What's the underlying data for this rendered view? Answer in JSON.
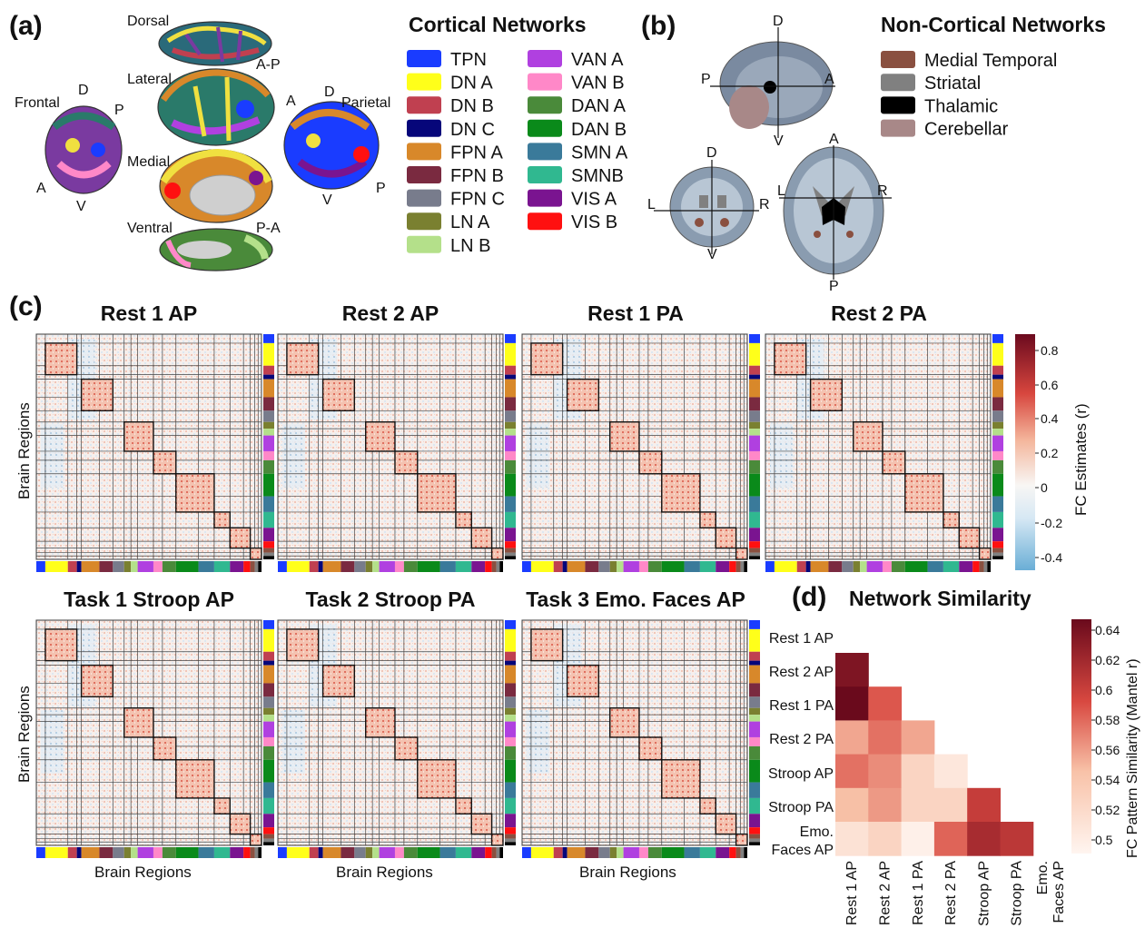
{
  "panels": {
    "a": {
      "label": "(a)",
      "views": [
        "Dorsal",
        "Lateral",
        "Medial",
        "Ventral",
        "Frontal",
        "Parietal"
      ],
      "orient": {
        "d": "D",
        "p": "P",
        "a": "A",
        "v": "V",
        "ap": "A-P",
        "pa": "P-A"
      }
    },
    "cortical": {
      "title": "Cortical Networks",
      "items": [
        {
          "name": "TPN",
          "color": "#1a3cff"
        },
        {
          "name": "DN A",
          "color": "#ffff1a"
        },
        {
          "name": "DN B",
          "color": "#c04050"
        },
        {
          "name": "DN C",
          "color": "#06067a"
        },
        {
          "name": "FPN A",
          "color": "#d8882a"
        },
        {
          "name": "FPN B",
          "color": "#7a2a40"
        },
        {
          "name": "FPN C",
          "color": "#787c8c"
        },
        {
          "name": "LN A",
          "color": "#7a8030"
        },
        {
          "name": "LN B",
          "color": "#b4e08a"
        },
        {
          "name": "VAN A",
          "color": "#b040e0"
        },
        {
          "name": "VAN B",
          "color": "#ff88c8"
        },
        {
          "name": "DAN A",
          "color": "#4a8a3a"
        },
        {
          "name": "DAN B",
          "color": "#0a8a1a"
        },
        {
          "name": "SMN A",
          "color": "#3a7a9a"
        },
        {
          "name": "SMNB",
          "color": "#30b890"
        },
        {
          "name": "VIS A",
          "color": "#7a1490"
        },
        {
          "name": "VIS B",
          "color": "#ff1010"
        }
      ]
    },
    "b": {
      "label": "(b)",
      "title": "Non-Cortical Networks",
      "items": [
        {
          "name": "Medial Temporal",
          "color": "#8a5040"
        },
        {
          "name": "Striatal",
          "color": "#808080"
        },
        {
          "name": "Thalamic",
          "color": "#000000"
        },
        {
          "name": "Cerebellar",
          "color": "#a88888"
        }
      ],
      "orient": {
        "d": "D",
        "v": "V",
        "a": "A",
        "p": "P",
        "l": "L",
        "r": "R"
      }
    },
    "c": {
      "label": "(c)",
      "matrices": [
        "Rest 1 AP",
        "Rest 2 AP",
        "Rest 1 PA",
        "Rest 2 PA",
        "Task 1 Stroop AP",
        "Task 2 Stroop PA",
        "Task 3 Emo. Faces AP"
      ],
      "axis_label": "Brain Regions",
      "colorbar": {
        "label": "FC Estimates (r)",
        "ticks": [
          "0.8",
          "0.6",
          "0.4",
          "0.2",
          "0",
          "-0.2",
          "-0.4"
        ]
      }
    },
    "d": {
      "label": "(d)",
      "title": "Network Similarity",
      "colorbar": {
        "label": "FC Pattern Similarity (Mantel r)",
        "ticks": [
          "0.64",
          "0.62",
          "0.6",
          "0.58",
          "0.56",
          "0.54",
          "0.52",
          "0.5"
        ]
      }
    }
  },
  "chart_data": {
    "type": "heatmap",
    "title": "Network Similarity",
    "rows": [
      "Rest 1 AP",
      "Rest 2 AP",
      "Rest 1 PA",
      "Rest 2 PA",
      "Stroop AP",
      "Stroop PA",
      "Emo. Faces AP"
    ],
    "cols": [
      "Rest 1 AP",
      "Rest 2 AP",
      "Rest 1 PA",
      "Rest 2 PA",
      "Stroop AP",
      "Stroop PA",
      "Emo. Faces AP"
    ],
    "value_range": [
      0.49,
      0.645
    ],
    "lower_triangle": [
      {
        "row": "Rest 2 AP",
        "values": [
          0.635
        ]
      },
      {
        "row": "Rest 1 PA",
        "values": [
          0.645,
          0.585
        ]
      },
      {
        "row": "Rest 2 PA",
        "values": [
          0.555,
          0.575,
          0.555
        ]
      },
      {
        "row": "Stroop AP",
        "values": [
          0.575,
          0.565,
          0.525,
          0.505
        ]
      },
      {
        "row": "Stroop PA",
        "values": [
          0.545,
          0.56,
          0.525,
          0.525,
          0.6
        ]
      },
      {
        "row": "Emo. Faces AP",
        "values": [
          0.51,
          0.525,
          0.495,
          0.58,
          0.615,
          0.605
        ]
      }
    ]
  }
}
